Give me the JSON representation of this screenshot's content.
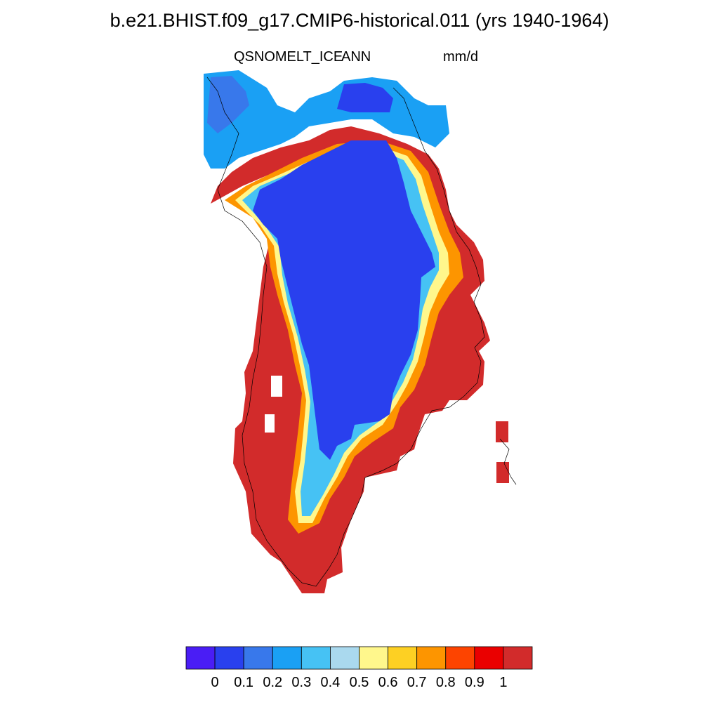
{
  "title": "b.e21.BHIST.f09_g17.CMIP6-historical.011 (yrs 1940-1964)",
  "subtitle_left": "QSNOMELT_ICE",
  "subtitle_center": "ANN",
  "subtitle_right": "mm/d",
  "colorbar": {
    "colors": [
      "#4a1df5",
      "#2940ee",
      "#3878eb",
      "#1aa0f4",
      "#46c2f4",
      "#aad9ee",
      "#fff78c",
      "#fdd023",
      "#fd9500",
      "#fd4400",
      "#ea0000",
      "#d22b2b"
    ],
    "tick_labels": [
      "0",
      "0.1",
      "0.2",
      "0.3",
      "0.4",
      "0.5",
      "0.6",
      "0.7",
      "0.8",
      "0.9",
      "1"
    ]
  },
  "map": {
    "region": "Greenland",
    "ice_interior_color": "#2940ee",
    "coastal_margin_color": "#d22b2b"
  }
}
